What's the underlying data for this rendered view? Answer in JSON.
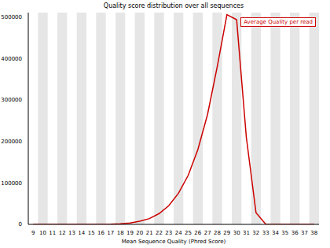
{
  "chart_data": {
    "type": "line",
    "title": "Quality score distribution over all sequences",
    "x_label": "Mean Sequence Quality (Phred Score)",
    "x": [
      9,
      10,
      11,
      12,
      13,
      14,
      15,
      16,
      17,
      18,
      19,
      20,
      21,
      22,
      23,
      24,
      25,
      26,
      27,
      28,
      29,
      30,
      31,
      32,
      33,
      34,
      35,
      36,
      37,
      38
    ],
    "series": [
      {
        "name": "Average Quality per read",
        "color": "#cc0000",
        "values": [
          0,
          0,
          0,
          0,
          0,
          0,
          0,
          0,
          300,
          1500,
          3500,
          7500,
          14000,
          26000,
          45000,
          75000,
          118000,
          180000,
          265000,
          380000,
          505000,
          493000,
          210000,
          28000,
          500,
          0,
          0,
          0,
          0,
          0
        ]
      }
    ],
    "xlim": [
      8.5,
      38.5
    ],
    "xticks": [
      9,
      10,
      11,
      12,
      13,
      14,
      15,
      16,
      17,
      18,
      19,
      20,
      21,
      22,
      23,
      24,
      25,
      26,
      27,
      28,
      29,
      30,
      31,
      32,
      33,
      34,
      35,
      36,
      37,
      38
    ],
    "ylim": [
      0,
      510000
    ],
    "yticks": [
      0,
      100000,
      200000,
      300000,
      400000,
      500000
    ],
    "legend": "upper right"
  }
}
